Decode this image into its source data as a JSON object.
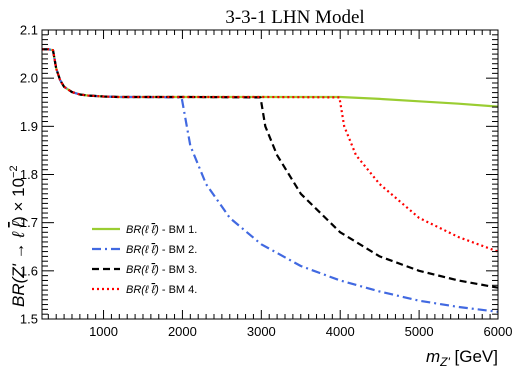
{
  "chart_data": {
    "type": "line",
    "title": "3-3-1 LHN Model",
    "xlabel": "m_Z' [GeV]",
    "xlabel_parts": {
      "main": "m",
      "sub": "Z'",
      "unit": "[GeV]"
    },
    "ylabel": "BR(Z' → ℓ ℓ̄) × 10⁻²",
    "ylabel_parts": {
      "prefix": "BR(Z' → ℓ ",
      "lbar": "ℓ",
      "suffix": ") × 10",
      "exp": "−2"
    },
    "xlim": [
      220,
      6000
    ],
    "ylim": [
      1.5,
      2.1
    ],
    "xticks": [
      1000,
      2000,
      3000,
      4000,
      5000,
      6000
    ],
    "yticks": [
      1.5,
      1.6,
      1.7,
      1.8,
      1.9,
      2.0,
      2.1
    ],
    "ytick_labels": [
      "1.5",
      "1.6",
      "1.7",
      "1.8",
      "1.9",
      "2.0",
      "2.1"
    ],
    "grid": false,
    "legend_position": "bottom-left",
    "series": [
      {
        "name": "BR(ℓ ℓ̄) - BM 1.",
        "legend_math": "BR(ℓ ℓ̄)",
        "legend_suffix": " - BM 1.",
        "color": "#9acd32",
        "dash": "solid",
        "x": [
          220,
          300,
          360,
          400,
          450,
          500,
          600,
          700,
          800,
          900,
          1000,
          1200,
          1500,
          2000,
          3000,
          4000,
          4500,
          5000,
          5500,
          6000
        ],
        "y": [
          2.06,
          2.06,
          2.058,
          2.02,
          1.996,
          1.982,
          1.971,
          1.966,
          1.964,
          1.963,
          1.962,
          1.961,
          1.961,
          1.961,
          1.961,
          1.961,
          1.957,
          1.952,
          1.947,
          1.941
        ]
      },
      {
        "name": "BR(ℓ ℓ̄) - BM 2.",
        "legend_math": "BR(ℓ ℓ̄)",
        "legend_suffix": " - BM 2.",
        "color": "#4169e1",
        "dash": "dashdot",
        "x": [
          220,
          300,
          360,
          400,
          450,
          500,
          600,
          700,
          800,
          900,
          1000,
          1200,
          1500,
          1990,
          2100,
          2300,
          2600,
          3000,
          3500,
          4000,
          4500,
          5000,
          5500,
          6000
        ],
        "y": [
          2.06,
          2.06,
          2.058,
          2.02,
          1.996,
          1.982,
          1.971,
          1.966,
          1.964,
          1.963,
          1.962,
          1.961,
          1.961,
          1.96,
          1.86,
          1.78,
          1.71,
          1.655,
          1.61,
          1.58,
          1.557,
          1.538,
          1.525,
          1.515
        ]
      },
      {
        "name": "BR(ℓ ℓ̄) - BM 3.",
        "legend_math": "BR(ℓ ℓ̄)",
        "legend_suffix": " - BM 3.",
        "color": "#000000",
        "dash": "dashed",
        "x": [
          220,
          300,
          360,
          400,
          450,
          500,
          600,
          700,
          800,
          900,
          1000,
          1200,
          1500,
          2000,
          2990,
          3050,
          3200,
          3500,
          4000,
          4500,
          5000,
          5500,
          6000
        ],
        "y": [
          2.06,
          2.06,
          2.058,
          2.02,
          1.996,
          1.982,
          1.971,
          1.966,
          1.964,
          1.963,
          1.962,
          1.961,
          1.961,
          1.961,
          1.96,
          1.9,
          1.84,
          1.76,
          1.68,
          1.63,
          1.6,
          1.58,
          1.565
        ]
      },
      {
        "name": "BR(ℓ ℓ̄) - BM 4.",
        "legend_math": "BR(ℓ ℓ̄)",
        "legend_suffix": " - BM 4.",
        "color": "#ff0000",
        "dash": "dotted",
        "x": [
          220,
          300,
          360,
          400,
          450,
          500,
          600,
          700,
          800,
          900,
          1000,
          1200,
          1500,
          2000,
          3000,
          3990,
          4050,
          4200,
          4500,
          5000,
          5500,
          6000
        ],
        "y": [
          2.06,
          2.06,
          2.058,
          2.02,
          1.996,
          1.982,
          1.971,
          1.966,
          1.964,
          1.963,
          1.962,
          1.961,
          1.961,
          1.961,
          1.961,
          1.96,
          1.9,
          1.84,
          1.78,
          1.71,
          1.67,
          1.64
        ]
      }
    ]
  }
}
